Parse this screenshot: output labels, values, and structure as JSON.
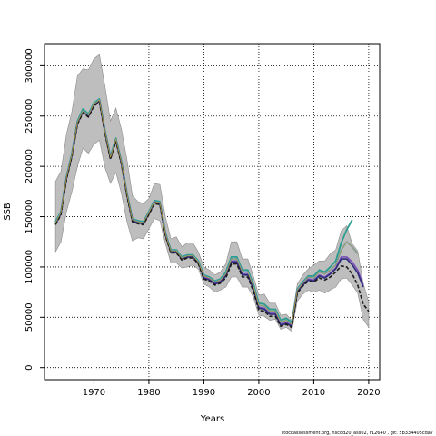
{
  "chart_data": {
    "type": "line",
    "xlabel": "Years",
    "ylabel": "SSB",
    "xlim": [
      1961,
      2022
    ],
    "ylim": [
      -12000,
      322000
    ],
    "x_ticks": [
      1970,
      1980,
      1990,
      2000,
      2010,
      2020
    ],
    "y_ticks": [
      0,
      50000,
      100000,
      150000,
      200000,
      250000,
      300000
    ],
    "grid": "dotted",
    "footer": "stockassessment.org, nscod20_ass02, r12640 , git: 5b334405cda7",
    "colors": {
      "band": "#bebebe",
      "band_edge": "#8c8c8c",
      "grid": "#000000",
      "runs": [
        "#2a9d8f",
        "#5a8fd0",
        "#7b50b8",
        "#2c2c7a",
        "#1a1a1a"
      ],
      "olive": "#b0a340"
    },
    "band": {
      "x": [
        1963,
        1964,
        1965,
        1966,
        1967,
        1968,
        1969,
        1970,
        1971,
        1972,
        1973,
        1974,
        1975,
        1976,
        1977,
        1978,
        1979,
        1980,
        1981,
        1982,
        1983,
        1984,
        1985,
        1986,
        1987,
        1988,
        1989,
        1990,
        1991,
        1992,
        1993,
        1994,
        1995,
        1996,
        1997,
        1998,
        1999,
        2000,
        2001,
        2002,
        2003,
        2004,
        2005,
        2006,
        2007,
        2008,
        2009,
        2010,
        2011,
        2012,
        2013,
        2014,
        2015,
        2016,
        2017,
        2018,
        2019,
        2020
      ],
      "lower": [
        115000,
        125000,
        155000,
        175000,
        200000,
        218000,
        213000,
        222000,
        226000,
        199000,
        183000,
        194000,
        173000,
        145000,
        126000,
        129000,
        128000,
        138000,
        148000,
        146000,
        123000,
        104000,
        104000,
        99000,
        100000,
        102000,
        98000,
        83000,
        80000,
        75000,
        77000,
        80000,
        90000,
        90000,
        80000,
        80000,
        70000,
        52000,
        51000,
        47000,
        48000,
        38000,
        40000,
        36000,
        66000,
        73000,
        77000,
        75000,
        77000,
        74000,
        77000,
        80000,
        88000,
        89000,
        82000,
        74000,
        48000,
        40000
      ],
      "upper": [
        185000,
        195000,
        232000,
        255000,
        290000,
        297000,
        296000,
        307000,
        311000,
        280000,
        245000,
        258000,
        237000,
        207000,
        171000,
        165000,
        163000,
        168000,
        183000,
        182000,
        150000,
        128000,
        130000,
        120000,
        124000,
        124000,
        115000,
        100000,
        97000,
        92000,
        95000,
        103000,
        125000,
        125000,
        108000,
        108000,
        91000,
        72000,
        73000,
        64000,
        64000,
        52000,
        53000,
        47000,
        83000,
        92000,
        98000,
        102000,
        106000,
        106000,
        113000,
        117000,
        136000,
        141000,
        123000,
        116000,
        84000,
        65000
      ]
    },
    "series": [
      {
        "x": [
          1963,
          1964,
          1965,
          1966,
          1967,
          1968,
          1969,
          1970,
          1971,
          1972,
          1973,
          1974,
          1975,
          1976,
          1977,
          1978,
          1979,
          1980,
          1981,
          1982,
          1983,
          1984,
          1985,
          1986,
          1987,
          1988,
          1989,
          1990,
          1991,
          1992,
          1993,
          1994,
          1995,
          1996,
          1997,
          1998,
          1999,
          2000,
          2001,
          2002,
          2003,
          2004,
          2005,
          2006,
          2007,
          2008,
          2009,
          2010,
          2011,
          2012,
          2013,
          2014,
          2015,
          2016,
          2017
        ],
        "y": [
          145000,
          155000,
          190000,
          213000,
          245000,
          257000,
          252000,
          263000,
          267000,
          236000,
          210000,
          228000,
          205000,
          174000,
          148000,
          146000,
          145000,
          155000,
          166000,
          165000,
          134000,
          117000,
          117000,
          110000,
          112000,
          112000,
          106000,
          92000,
          90000,
          86000,
          88000,
          95000,
          110000,
          110000,
          97000,
          97000,
          83000,
          64000,
          63000,
          58000,
          58000,
          47000,
          49000,
          45000,
          78000,
          85000,
          91000,
          91000,
          97000,
          95000,
          100000,
          106000,
          124000,
          137000,
          147000
        ]
      },
      {
        "x": [
          1963,
          1964,
          1965,
          1966,
          1967,
          1968,
          1969,
          1970,
          1971,
          1972,
          1973,
          1974,
          1975,
          1976,
          1977,
          1978,
          1979,
          1980,
          1981,
          1982,
          1983,
          1984,
          1985,
          1986,
          1987,
          1988,
          1989,
          1990,
          1991,
          1992,
          1993,
          1994,
          1995,
          1996,
          1997,
          1998,
          1999,
          2000,
          2001,
          2002,
          2003,
          2004,
          2005,
          2006,
          2007,
          2008,
          2009,
          2010,
          2011,
          2012,
          2013,
          2014,
          2015,
          2016,
          2017,
          2018
        ],
        "y": [
          144000,
          154000,
          189000,
          212000,
          244000,
          255000,
          251000,
          262000,
          266000,
          235000,
          209000,
          227000,
          204000,
          173000,
          147000,
          145000,
          144000,
          154000,
          165000,
          164000,
          133000,
          116000,
          116000,
          109000,
          111000,
          111000,
          105000,
          91000,
          89000,
          85000,
          87000,
          93000,
          108000,
          108000,
          95000,
          95000,
          81000,
          62000,
          61000,
          56000,
          56000,
          45000,
          47000,
          43000,
          77000,
          84000,
          90000,
          89000,
          95000,
          93000,
          97000,
          102000,
          117000,
          125000,
          120000,
          113000
        ]
      },
      {
        "x": [
          1963,
          1964,
          1965,
          1966,
          1967,
          1968,
          1969,
          1970,
          1971,
          1972,
          1973,
          1974,
          1975,
          1976,
          1977,
          1978,
          1979,
          1980,
          1981,
          1982,
          1983,
          1984,
          1985,
          1986,
          1987,
          1988,
          1989,
          1990,
          1991,
          1992,
          1993,
          1994,
          1995,
          1996,
          1997,
          1998,
          1999,
          2000,
          2001,
          2002,
          2003,
          2004,
          2005,
          2006,
          2007,
          2008,
          2009,
          2010,
          2011,
          2012,
          2013,
          2014,
          2015,
          2016,
          2017,
          2018,
          2019
        ],
        "y": [
          143000,
          153000,
          188000,
          211000,
          243000,
          254000,
          250000,
          261000,
          265000,
          234000,
          208000,
          226000,
          203000,
          172000,
          146000,
          144000,
          143000,
          153000,
          164000,
          163000,
          132000,
          115000,
          115000,
          108000,
          110000,
          110000,
          104000,
          90000,
          88000,
          84000,
          86000,
          92000,
          106000,
          106000,
          93000,
          93000,
          79000,
          60000,
          59000,
          54000,
          54000,
          43000,
          45000,
          42000,
          76000,
          83000,
          88000,
          87000,
          92000,
          90000,
          94000,
          99000,
          110000,
          110000,
          105000,
          97000,
          82000
        ]
      },
      {
        "x": [
          1963,
          1964,
          1965,
          1966,
          1967,
          1968,
          1969,
          1970,
          1971,
          1972,
          1973,
          1974,
          1975,
          1976,
          1977,
          1978,
          1979,
          1980,
          1981,
          1982,
          1983,
          1984,
          1985,
          1986,
          1987,
          1988,
          1989,
          1990,
          1991,
          1992,
          1993,
          1994,
          1995,
          1996,
          1997,
          1998,
          1999,
          2000,
          2001,
          2002,
          2003,
          2004,
          2005,
          2006,
          2007,
          2008,
          2009,
          2010,
          2011,
          2012,
          2013,
          2014,
          2015,
          2016,
          2017,
          2018,
          2019
        ],
        "y": [
          143000,
          153000,
          188000,
          211000,
          243000,
          254000,
          250000,
          261000,
          265000,
          234000,
          208000,
          226000,
          203000,
          172000,
          146000,
          144000,
          143000,
          153000,
          164000,
          163000,
          132000,
          115000,
          115000,
          108000,
          110000,
          110000,
          104000,
          89000,
          87000,
          83000,
          85000,
          91000,
          105000,
          105000,
          92000,
          92000,
          78000,
          59000,
          58000,
          53000,
          53000,
          42000,
          44000,
          41000,
          75000,
          82000,
          87000,
          86000,
          91000,
          89000,
          93000,
          98000,
          108000,
          108000,
          102000,
          94000,
          80000
        ]
      },
      {
        "x": [
          1963,
          1964,
          1965,
          1966,
          1967,
          1968,
          1969,
          1970,
          1971,
          1972,
          1973,
          1974,
          1975,
          1976,
          1977,
          1978,
          1979,
          1980,
          1981,
          1982,
          1983,
          1984,
          1985,
          1986,
          1987,
          1988,
          1989,
          1990,
          1991,
          1992,
          1993,
          1994,
          1995,
          1996,
          1997,
          1998,
          1999,
          2000,
          2001,
          2002,
          2003,
          2004,
          2005,
          2006,
          2007,
          2008,
          2009,
          2010,
          2011,
          2012,
          2013,
          2014,
          2015,
          2016,
          2017,
          2018,
          2019,
          2020
        ],
        "y": [
          142000,
          152000,
          187000,
          210000,
          242000,
          253000,
          249000,
          260000,
          264000,
          233000,
          207000,
          225000,
          202000,
          171000,
          145000,
          143000,
          142000,
          152000,
          163000,
          162000,
          131000,
          114000,
          114000,
          107000,
          109000,
          109000,
          103000,
          88000,
          86000,
          82000,
          84000,
          89000,
          103000,
          103000,
          90000,
          90000,
          76000,
          57000,
          56000,
          51000,
          51000,
          41000,
          43000,
          40000,
          74000,
          81000,
          86000,
          85000,
          89000,
          87000,
          90000,
          95000,
          101000,
          100000,
          93000,
          82000,
          63000,
          56000
        ]
      }
    ]
  }
}
